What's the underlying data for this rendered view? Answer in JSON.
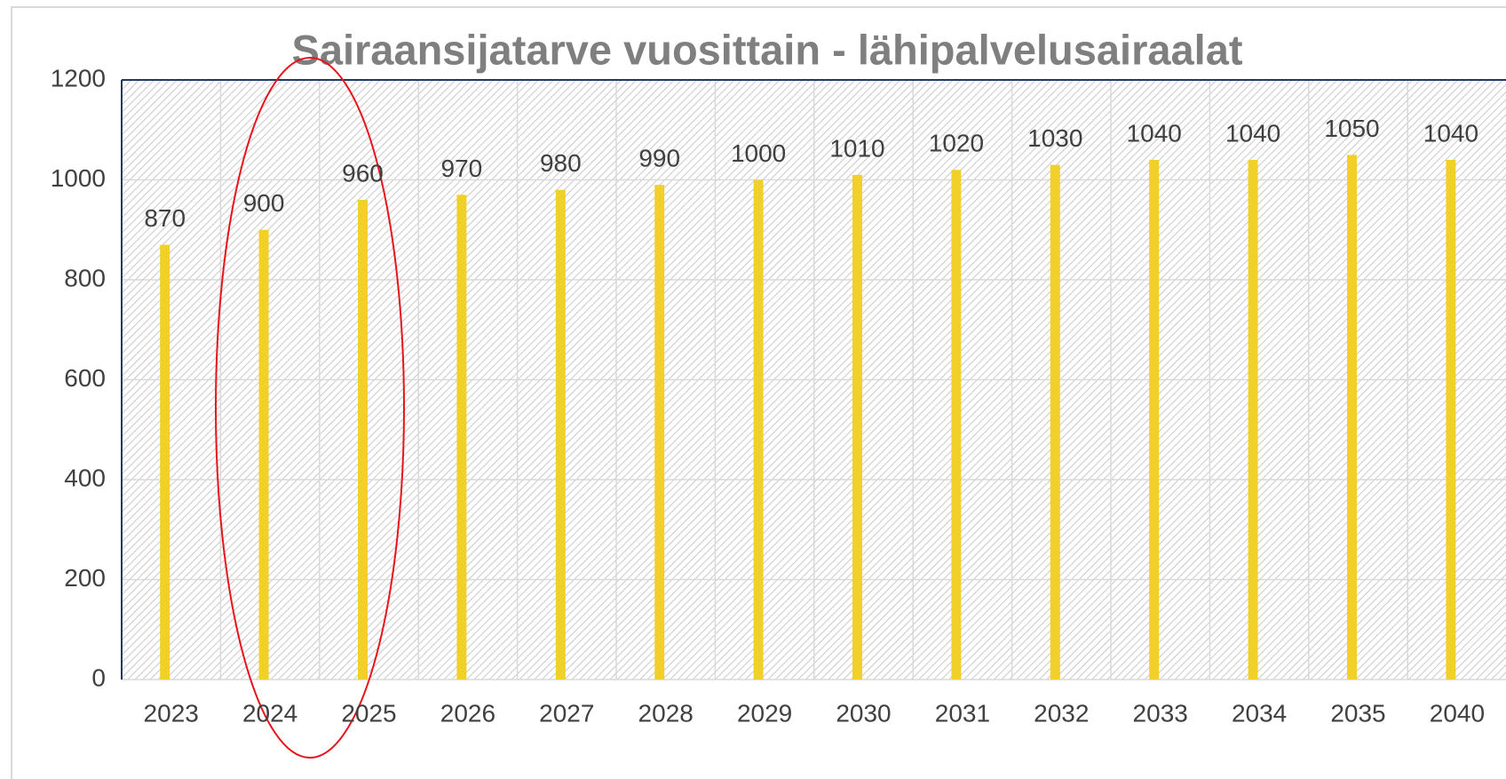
{
  "chart_data": {
    "type": "bar",
    "title": "Sairaansijatarve vuosittain - lähipalvelusairaalat",
    "categories": [
      "2023",
      "2024",
      "2025",
      "2026",
      "2027",
      "2028",
      "2029",
      "2030",
      "2031",
      "2032",
      "2033",
      "2034",
      "2035",
      "2040"
    ],
    "values": [
      870,
      900,
      960,
      970,
      980,
      990,
      1000,
      1010,
      1020,
      1030,
      1040,
      1040,
      1050,
      1040
    ],
    "color": "#f2d02a",
    "ylim": [
      0,
      1200
    ],
    "yticks": [
      0,
      200,
      400,
      600,
      800,
      1000,
      1200
    ],
    "grid": true
  }
}
